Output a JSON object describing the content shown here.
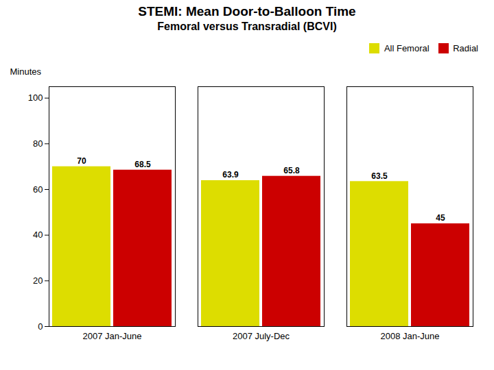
{
  "chart_data": {
    "type": "bar",
    "title": "STEMI: Mean Door-to-Balloon Time",
    "subtitle": "Femoral versus Transradial (BCVI)",
    "categories": [
      "2007 Jan-June",
      "2007 July-Dec",
      "2008 Jan-June"
    ],
    "series": [
      {
        "name": "All Femoral",
        "color": "#DDDD00",
        "values": [
          70,
          63.9,
          63.5
        ]
      },
      {
        "name": "Radial",
        "color": "#CC0000",
        "values": [
          68.5,
          65.8,
          45
        ]
      }
    ],
    "ylabel": "Minutes",
    "ylim": [
      0,
      105
    ],
    "yticks": [
      0,
      20,
      40,
      60,
      80,
      100
    ],
    "grid": false,
    "legend": "upper right",
    "data_labels": true
  }
}
